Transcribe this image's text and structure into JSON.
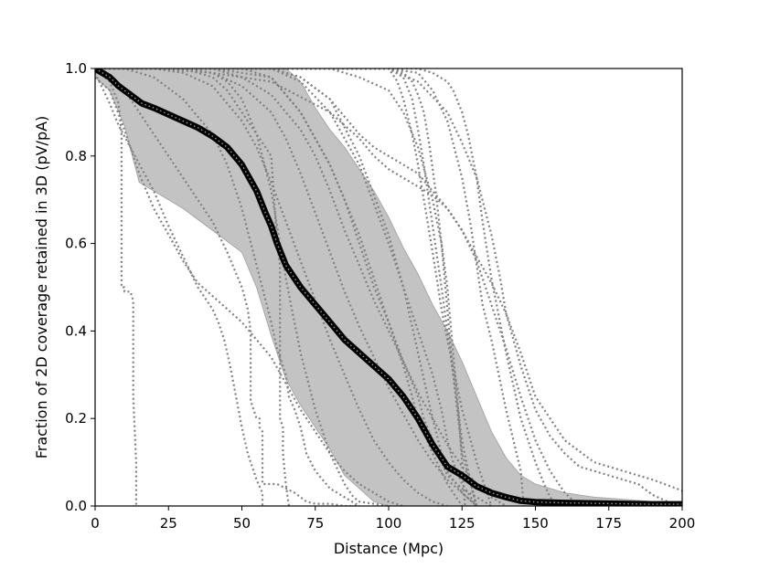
{
  "chart_data": {
    "type": "line",
    "title": "",
    "xlabel": "Distance (Mpc)",
    "ylabel": "Fraction of 2D coverage retained in 3D (pV/pA)",
    "xlim": [
      0,
      200
    ],
    "ylim": [
      0,
      1
    ],
    "x_ticks": [
      0,
      25,
      50,
      75,
      100,
      125,
      150,
      175,
      200
    ],
    "y_ticks": [
      0.0,
      0.2,
      0.4,
      0.6,
      0.8,
      1.0
    ],
    "x_tick_labels": [
      "0",
      "25",
      "50",
      "75",
      "100",
      "125",
      "150",
      "175",
      "200"
    ],
    "y_tick_labels": [
      "0.0",
      "0.2",
      "0.4",
      "0.6",
      "0.8",
      "1.0"
    ],
    "grid": false,
    "colors": {
      "median": "#000000",
      "band": "#c0c0c0",
      "individual": "#808080"
    },
    "band": {
      "x": [
        0,
        5,
        10,
        15,
        20,
        25,
        30,
        40,
        50,
        55,
        60,
        65,
        70,
        75,
        80,
        85,
        90,
        95,
        100,
        105,
        110,
        115,
        120,
        125,
        130,
        135,
        140,
        145,
        150,
        160,
        170,
        180,
        190,
        200
      ],
      "upper": [
        1.0,
        1.0,
        1.0,
        1.0,
        1.0,
        1.0,
        1.0,
        1.0,
        1.0,
        1.0,
        1.0,
        1.0,
        0.97,
        0.91,
        0.86,
        0.82,
        0.77,
        0.72,
        0.66,
        0.59,
        0.53,
        0.46,
        0.4,
        0.33,
        0.25,
        0.17,
        0.11,
        0.07,
        0.05,
        0.03,
        0.02,
        0.015,
        0.01,
        0.01
      ],
      "lower": [
        0.98,
        0.95,
        0.87,
        0.74,
        0.72,
        0.7,
        0.68,
        0.63,
        0.58,
        0.5,
        0.39,
        0.29,
        0.23,
        0.18,
        0.13,
        0.07,
        0.04,
        0.01,
        0.0,
        0.0,
        0.0,
        0.0,
        0.0,
        0.0,
        0.0,
        0.0,
        0.0,
        0.0,
        0.0,
        0.0,
        0.0,
        0.0,
        0.0,
        0.0
      ]
    },
    "series": [
      {
        "style": "median",
        "x": [
          0,
          5,
          8,
          10,
          12,
          14,
          16,
          20,
          25,
          30,
          35,
          40,
          45,
          50,
          55,
          58,
          60,
          62,
          65,
          70,
          75,
          80,
          85,
          90,
          95,
          100,
          105,
          110,
          115,
          118,
          120,
          125,
          130,
          135,
          140,
          145,
          150,
          160,
          170,
          180,
          190,
          200
        ],
        "y": [
          1.0,
          0.98,
          0.96,
          0.95,
          0.94,
          0.93,
          0.92,
          0.91,
          0.895,
          0.88,
          0.865,
          0.845,
          0.82,
          0.78,
          0.72,
          0.67,
          0.64,
          0.6,
          0.55,
          0.5,
          0.46,
          0.42,
          0.38,
          0.35,
          0.32,
          0.29,
          0.25,
          0.2,
          0.14,
          0.11,
          0.09,
          0.07,
          0.045,
          0.03,
          0.02,
          0.012,
          0.009,
          0.007,
          0.006,
          0.005,
          0.004,
          0.004
        ]
      },
      {
        "style": "individual",
        "x": [
          0,
          5,
          8,
          9,
          9,
          10,
          10,
          12,
          13,
          13,
          14,
          14
        ],
        "y": [
          1.0,
          0.97,
          0.92,
          0.85,
          0.5,
          0.5,
          0.49,
          0.49,
          0.47,
          0.25,
          0.1,
          0.0
        ]
      },
      {
        "style": "individual",
        "x": [
          0,
          5,
          8,
          12,
          20,
          25,
          30,
          35,
          40,
          42,
          44,
          46,
          48,
          50,
          52,
          55,
          57,
          57
        ],
        "y": [
          0.99,
          0.92,
          0.87,
          0.82,
          0.72,
          0.64,
          0.57,
          0.5,
          0.45,
          0.42,
          0.38,
          0.32,
          0.25,
          0.18,
          0.12,
          0.06,
          0.03,
          0.0
        ]
      },
      {
        "style": "individual",
        "x": [
          0,
          5,
          10,
          15,
          20,
          25,
          30,
          35,
          40,
          45,
          50,
          55,
          60,
          65,
          70,
          75,
          80,
          85,
          90,
          95,
          100,
          105
        ],
        "y": [
          0.98,
          0.95,
          0.86,
          0.76,
          0.68,
          0.62,
          0.56,
          0.51,
          0.48,
          0.45,
          0.42,
          0.38,
          0.34,
          0.28,
          0.22,
          0.17,
          0.12,
          0.08,
          0.05,
          0.03,
          0.01,
          0.0
        ]
      },
      {
        "style": "individual",
        "x": [
          0,
          5,
          10,
          15,
          20,
          25,
          30,
          35,
          40,
          45,
          50,
          52,
          53,
          53,
          55,
          56,
          56,
          57,
          57,
          60,
          62,
          65,
          68,
          70,
          72,
          75,
          80,
          85,
          90
        ],
        "y": [
          1.0,
          0.98,
          0.95,
          0.9,
          0.85,
          0.8,
          0.75,
          0.7,
          0.65,
          0.58,
          0.5,
          0.45,
          0.4,
          0.24,
          0.2,
          0.2,
          0.18,
          0.17,
          0.05,
          0.05,
          0.05,
          0.04,
          0.03,
          0.02,
          0.01,
          0.005,
          0.005,
          0.0,
          0.0
        ]
      },
      {
        "style": "individual",
        "x": [
          0,
          10,
          20,
          30,
          40,
          45,
          50,
          55,
          60,
          62,
          64,
          65,
          66,
          68,
          70,
          72,
          75,
          80,
          85,
          90
        ],
        "y": [
          1.0,
          1.0,
          0.98,
          0.93,
          0.85,
          0.78,
          0.68,
          0.55,
          0.42,
          0.36,
          0.32,
          0.3,
          0.25,
          0.22,
          0.18,
          0.12,
          0.08,
          0.04,
          0.02,
          0.0
        ]
      },
      {
        "style": "individual",
        "x": [
          0,
          10,
          20,
          30,
          40,
          45,
          50,
          55,
          60,
          62,
          63,
          63,
          64,
          64,
          65,
          66
        ],
        "y": [
          1.0,
          1.0,
          1.0,
          1.0,
          0.98,
          0.95,
          0.9,
          0.85,
          0.8,
          0.6,
          0.55,
          0.2,
          0.18,
          0.12,
          0.05,
          0.0
        ]
      },
      {
        "style": "individual",
        "x": [
          0,
          10,
          20,
          30,
          40,
          45,
          50,
          55,
          60,
          65,
          67,
          70,
          75,
          80,
          85,
          88,
          90,
          95,
          100
        ],
        "y": [
          1.0,
          1.0,
          1.0,
          1.0,
          0.99,
          0.97,
          0.93,
          0.85,
          0.72,
          0.52,
          0.45,
          0.35,
          0.22,
          0.12,
          0.05,
          0.02,
          0.01,
          0.005,
          0.0
        ]
      },
      {
        "style": "individual",
        "x": [
          0,
          10,
          20,
          30,
          40,
          50,
          55,
          60,
          65,
          70,
          75,
          80,
          85,
          90,
          95,
          100,
          105,
          110,
          115,
          120
        ],
        "y": [
          1.0,
          1.0,
          1.0,
          0.99,
          0.96,
          0.88,
          0.82,
          0.74,
          0.65,
          0.56,
          0.47,
          0.38,
          0.3,
          0.22,
          0.15,
          0.1,
          0.06,
          0.03,
          0.01,
          0.0
        ]
      },
      {
        "style": "individual",
        "x": [
          0,
          10,
          20,
          30,
          40,
          50,
          60,
          65,
          70,
          75,
          80,
          85,
          90,
          95,
          100,
          105,
          110,
          115,
          120,
          125,
          130
        ],
        "y": [
          1.0,
          1.0,
          1.0,
          1.0,
          0.99,
          0.96,
          0.9,
          0.84,
          0.76,
          0.67,
          0.58,
          0.49,
          0.41,
          0.34,
          0.27,
          0.21,
          0.15,
          0.1,
          0.06,
          0.03,
          0.0
        ]
      },
      {
        "style": "individual",
        "x": [
          0,
          10,
          20,
          30,
          40,
          50,
          60,
          70,
          75,
          80,
          85,
          90,
          95,
          100,
          105,
          110,
          115,
          120,
          125,
          130,
          135,
          140
        ],
        "y": [
          1.0,
          1.0,
          1.0,
          1.0,
          1.0,
          0.98,
          0.94,
          0.86,
          0.8,
          0.72,
          0.63,
          0.55,
          0.47,
          0.4,
          0.33,
          0.26,
          0.2,
          0.14,
          0.09,
          0.05,
          0.02,
          0.0
        ]
      },
      {
        "style": "individual",
        "x": [
          0,
          20,
          40,
          50,
          60,
          70,
          80,
          90,
          95,
          100,
          105,
          110,
          112,
          115,
          118,
          120,
          125,
          130,
          135
        ],
        "y": [
          1.0,
          1.0,
          1.0,
          1.0,
          0.98,
          0.9,
          0.78,
          0.62,
          0.52,
          0.42,
          0.33,
          0.25,
          0.2,
          0.15,
          0.1,
          0.07,
          0.04,
          0.02,
          0.0
        ]
      },
      {
        "style": "individual",
        "x": [
          0,
          20,
          40,
          60,
          70,
          80,
          90,
          100,
          105,
          110,
          115,
          118,
          120,
          122,
          125,
          130
        ],
        "y": [
          1.0,
          1.0,
          1.0,
          1.0,
          0.97,
          0.9,
          0.78,
          0.6,
          0.5,
          0.4,
          0.3,
          0.22,
          0.15,
          0.1,
          0.05,
          0.0
        ]
      },
      {
        "style": "individual",
        "x": [
          0,
          20,
          40,
          60,
          70,
          80,
          85,
          90,
          95,
          100,
          105,
          108,
          110,
          115,
          120,
          125
        ],
        "y": [
          1.0,
          1.0,
          1.0,
          0.98,
          0.9,
          0.78,
          0.7,
          0.6,
          0.5,
          0.42,
          0.32,
          0.25,
          0.2,
          0.12,
          0.05,
          0.0
        ]
      },
      {
        "style": "individual",
        "x": [
          0,
          20,
          40,
          60,
          70,
          80,
          90,
          100,
          105,
          110,
          115,
          118,
          120,
          125,
          130
        ],
        "y": [
          1.0,
          1.0,
          1.0,
          1.0,
          0.98,
          0.93,
          0.8,
          0.62,
          0.5,
          0.35,
          0.2,
          0.12,
          0.08,
          0.03,
          0.0
        ]
      },
      {
        "style": "individual",
        "x": [
          0,
          20,
          40,
          60,
          80,
          90,
          100,
          105,
          110,
          115,
          118,
          120,
          122,
          124,
          125,
          126
        ],
        "y": [
          1.0,
          1.0,
          1.0,
          1.0,
          1.0,
          0.98,
          0.95,
          0.9,
          0.82,
          0.7,
          0.6,
          0.5,
          0.35,
          0.2,
          0.1,
          0.0
        ]
      },
      {
        "style": "individual",
        "x": [
          0,
          20,
          40,
          60,
          80,
          100,
          105,
          108,
          110,
          112,
          115,
          118,
          120,
          123,
          125,
          128,
          130
        ],
        "y": [
          1.0,
          1.0,
          1.0,
          1.0,
          1.0,
          1.0,
          0.98,
          0.93,
          0.86,
          0.78,
          0.64,
          0.5,
          0.4,
          0.25,
          0.15,
          0.05,
          0.0
        ]
      },
      {
        "style": "individual",
        "x": [
          0,
          20,
          40,
          60,
          80,
          100,
          110,
          115,
          120,
          125,
          128,
          130,
          132,
          135,
          140,
          145,
          146
        ],
        "y": [
          1.0,
          1.0,
          1.0,
          1.0,
          1.0,
          1.0,
          0.99,
          0.95,
          0.88,
          0.75,
          0.64,
          0.55,
          0.46,
          0.38,
          0.22,
          0.08,
          0.0
        ]
      },
      {
        "style": "individual",
        "x": [
          0,
          20,
          40,
          60,
          80,
          100,
          110,
          115,
          120,
          122,
          125,
          127,
          130,
          132,
          135,
          140,
          145,
          150,
          153,
          155,
          158
        ],
        "y": [
          1.0,
          1.0,
          1.0,
          1.0,
          1.0,
          1.0,
          1.0,
          0.99,
          0.97,
          0.95,
          0.9,
          0.85,
          0.75,
          0.65,
          0.52,
          0.35,
          0.2,
          0.1,
          0.05,
          0.02,
          0.0
        ]
      },
      {
        "style": "individual",
        "x": [
          0,
          20,
          40,
          60,
          80,
          90,
          95,
          100,
          105,
          110,
          115,
          120,
          125,
          130,
          135,
          140,
          145,
          150,
          155,
          160,
          165
        ],
        "y": [
          1.0,
          1.0,
          0.99,
          0.97,
          0.9,
          0.84,
          0.8,
          0.77,
          0.75,
          0.73,
          0.71,
          0.68,
          0.63,
          0.56,
          0.46,
          0.36,
          0.25,
          0.15,
          0.08,
          0.03,
          0.0
        ]
      },
      {
        "style": "individual",
        "x": [
          0,
          20,
          40,
          60,
          70,
          80,
          85,
          90,
          95,
          100,
          105,
          110,
          115,
          120,
          125,
          130,
          135,
          140,
          145,
          150,
          160,
          170,
          180,
          190,
          200
        ],
        "y": [
          1.0,
          1.0,
          1.0,
          1.0,
          0.98,
          0.93,
          0.89,
          0.85,
          0.82,
          0.8,
          0.78,
          0.76,
          0.72,
          0.68,
          0.63,
          0.57,
          0.51,
          0.44,
          0.35,
          0.25,
          0.15,
          0.1,
          0.08,
          0.06,
          0.035
        ]
      },
      {
        "style": "individual",
        "x": [
          0,
          20,
          40,
          60,
          80,
          100,
          110,
          120,
          125,
          130,
          135,
          138,
          140,
          145,
          150,
          155,
          160,
          165,
          170,
          175,
          180,
          185,
          190,
          195,
          200
        ],
        "y": [
          1.0,
          1.0,
          1.0,
          1.0,
          1.0,
          1.0,
          0.97,
          0.9,
          0.83,
          0.75,
          0.62,
          0.52,
          0.44,
          0.32,
          0.22,
          0.16,
          0.12,
          0.09,
          0.08,
          0.07,
          0.06,
          0.05,
          0.025,
          0.01,
          0.0
        ]
      },
      {
        "style": "individual",
        "x": [
          0,
          20,
          40,
          60,
          80,
          100,
          105,
          108,
          110,
          112,
          114,
          116,
          118,
          120,
          122,
          125,
          130
        ],
        "y": [
          1.0,
          1.0,
          1.0,
          1.0,
          1.0,
          1.0,
          0.99,
          0.97,
          0.94,
          0.9,
          0.82,
          0.72,
          0.6,
          0.45,
          0.3,
          0.12,
          0.0
        ]
      },
      {
        "style": "individual",
        "x": [
          0,
          20,
          40,
          60,
          80,
          100,
          101,
          103,
          105,
          108,
          110,
          112,
          115,
          118,
          120,
          125,
          130,
          135
        ],
        "y": [
          1.0,
          1.0,
          1.0,
          1.0,
          1.0,
          1.0,
          0.99,
          0.97,
          0.93,
          0.85,
          0.78,
          0.7,
          0.58,
          0.45,
          0.38,
          0.22,
          0.1,
          0.0
        ]
      }
    ]
  }
}
